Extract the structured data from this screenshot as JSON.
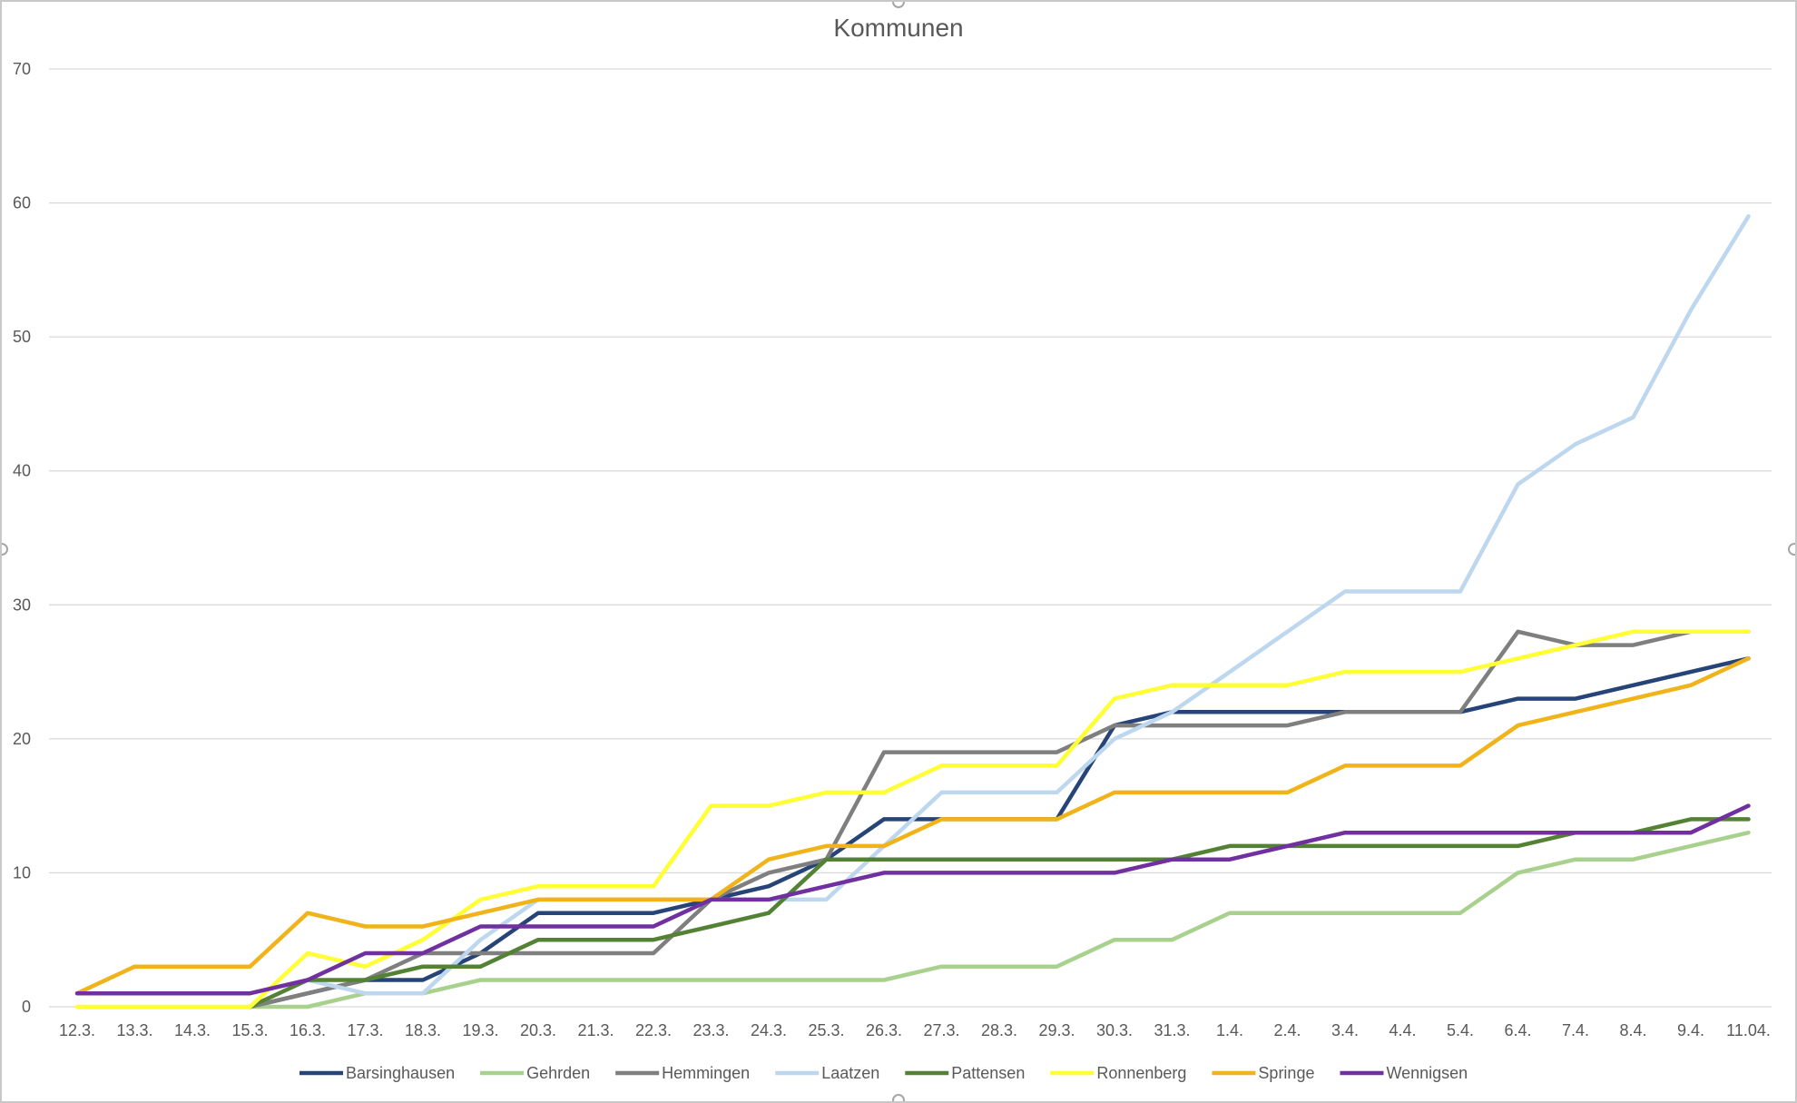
{
  "chart_data": {
    "type": "line",
    "title": "Kommunen",
    "xlabel": "",
    "ylabel": "",
    "ylim": [
      0,
      70
    ],
    "yticks": [
      "0",
      "10",
      "20",
      "30",
      "40",
      "50",
      "60",
      "70"
    ],
    "grid": true,
    "legend": "bottom",
    "categories": [
      "12.3.",
      "13.3.",
      "14.3.",
      "15.3.",
      "16.3.",
      "17.3.",
      "18.3.",
      "19.3.",
      "20.3.",
      "21.3.",
      "22.3.",
      "23.3.",
      "24.3.",
      "25.3.",
      "26.3.",
      "27.3.",
      "28.3.",
      "29.3.",
      "30.3.",
      "31.3.",
      "1.4.",
      "2.4.",
      "3.4.",
      "4.4.",
      "5.4.",
      "6.4.",
      "7.4.",
      "8.4.",
      "9.4.",
      "11.04."
    ],
    "series": [
      {
        "name": "Barsinghausen",
        "color": "#264478",
        "values": [
          null,
          null,
          null,
          0,
          1,
          2,
          2,
          4,
          7,
          7,
          7,
          8,
          9,
          11,
          14,
          14,
          14,
          14,
          21,
          22,
          22,
          22,
          22,
          22,
          22,
          23,
          23,
          24,
          25,
          26
        ]
      },
      {
        "name": "Gehrden",
        "color": "#A9D18E",
        "values": [
          null,
          null,
          null,
          0,
          0,
          1,
          1,
          2,
          2,
          2,
          2,
          2,
          2,
          2,
          2,
          3,
          3,
          3,
          5,
          5,
          7,
          7,
          7,
          7,
          7,
          10,
          11,
          11,
          12,
          13
        ]
      },
      {
        "name": "Hemmingen",
        "color": "#7F7F7F",
        "values": [
          null,
          null,
          null,
          0,
          1,
          2,
          4,
          4,
          4,
          4,
          4,
          8,
          10,
          11,
          19,
          19,
          19,
          19,
          21,
          21,
          21,
          21,
          22,
          22,
          22,
          28,
          27,
          27,
          28,
          28
        ]
      },
      {
        "name": "Laatzen",
        "color": "#BDD7EE",
        "values": [
          null,
          null,
          null,
          0,
          2,
          1,
          1,
          5,
          8,
          8,
          8,
          8,
          8,
          8,
          12,
          16,
          16,
          16,
          20,
          22,
          25,
          28,
          31,
          31,
          31,
          39,
          42,
          44,
          52,
          59
        ]
      },
      {
        "name": "Pattensen",
        "color": "#548235",
        "values": [
          null,
          null,
          null,
          0,
          2,
          2,
          3,
          3,
          5,
          5,
          5,
          6,
          7,
          11,
          11,
          11,
          11,
          11,
          11,
          11,
          12,
          12,
          12,
          12,
          12,
          12,
          13,
          13,
          14,
          14
        ]
      },
      {
        "name": "Ronnenberg",
        "color": "#FFFF33",
        "values": [
          0,
          0,
          0,
          0,
          4,
          3,
          5,
          8,
          9,
          9,
          9,
          15,
          15,
          16,
          16,
          18,
          18,
          18,
          23,
          24,
          24,
          24,
          25,
          25,
          25,
          26,
          27,
          28,
          28,
          28
        ]
      },
      {
        "name": "Springe",
        "color": "#F0B31A",
        "values": [
          1,
          3,
          3,
          3,
          7,
          6,
          6,
          7,
          8,
          8,
          8,
          8,
          11,
          12,
          12,
          14,
          14,
          14,
          16,
          16,
          16,
          16,
          18,
          18,
          18,
          21,
          22,
          23,
          24,
          26
        ]
      },
      {
        "name": "Wennigsen",
        "color": "#7030A0",
        "values": [
          1,
          1,
          1,
          1,
          2,
          4,
          4,
          6,
          6,
          6,
          6,
          8,
          8,
          9,
          10,
          10,
          10,
          10,
          10,
          11,
          11,
          12,
          13,
          13,
          13,
          13,
          13,
          13,
          13,
          15
        ]
      }
    ]
  }
}
